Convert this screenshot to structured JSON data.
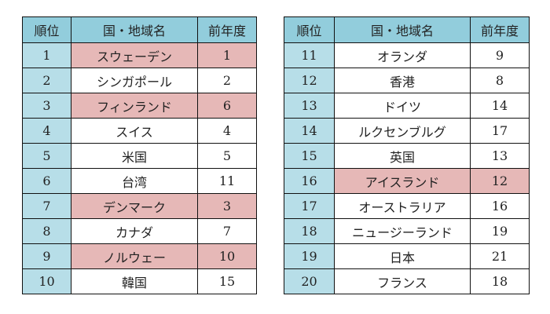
{
  "colors": {
    "header_bg": "#92cddc",
    "rank_bg": "#b7dee8",
    "highlight_bg": "#e6b8b7",
    "border": "#111111"
  },
  "headers": {
    "rank": "順位",
    "country": "国・地域名",
    "previous": "前年度"
  },
  "left_table": [
    {
      "rank": "1",
      "country": "スウェーデン",
      "previous": "1",
      "highlight": true
    },
    {
      "rank": "2",
      "country": "シンガポール",
      "previous": "2",
      "highlight": false
    },
    {
      "rank": "3",
      "country": "フィンランド",
      "previous": "6",
      "highlight": true
    },
    {
      "rank": "4",
      "country": "スイス",
      "previous": "4",
      "highlight": false
    },
    {
      "rank": "5",
      "country": "米国",
      "previous": "5",
      "highlight": false
    },
    {
      "rank": "6",
      "country": "台湾",
      "previous": "11",
      "highlight": false
    },
    {
      "rank": "7",
      "country": "デンマーク",
      "previous": "3",
      "highlight": true
    },
    {
      "rank": "8",
      "country": "カナダ",
      "previous": "7",
      "highlight": false
    },
    {
      "rank": "9",
      "country": "ノルウェー",
      "previous": "10",
      "highlight": true
    },
    {
      "rank": "10",
      "country": "韓国",
      "previous": "15",
      "highlight": false
    }
  ],
  "right_table": [
    {
      "rank": "11",
      "country": "オランダ",
      "previous": "9",
      "highlight": false
    },
    {
      "rank": "12",
      "country": "香港",
      "previous": "8",
      "highlight": false
    },
    {
      "rank": "13",
      "country": "ドイツ",
      "previous": "14",
      "highlight": false
    },
    {
      "rank": "14",
      "country": "ルクセンブルグ",
      "previous": "17",
      "highlight": false
    },
    {
      "rank": "15",
      "country": "英国",
      "previous": "13",
      "highlight": false
    },
    {
      "rank": "16",
      "country": "アイスランド",
      "previous": "12",
      "highlight": true
    },
    {
      "rank": "17",
      "country": "オーストラリア",
      "previous": "16",
      "highlight": false
    },
    {
      "rank": "18",
      "country": "ニュージーランド",
      "previous": "19",
      "highlight": false
    },
    {
      "rank": "19",
      "country": "日本",
      "previous": "21",
      "highlight": false
    },
    {
      "rank": "20",
      "country": "フランス",
      "previous": "18",
      "highlight": false
    }
  ]
}
